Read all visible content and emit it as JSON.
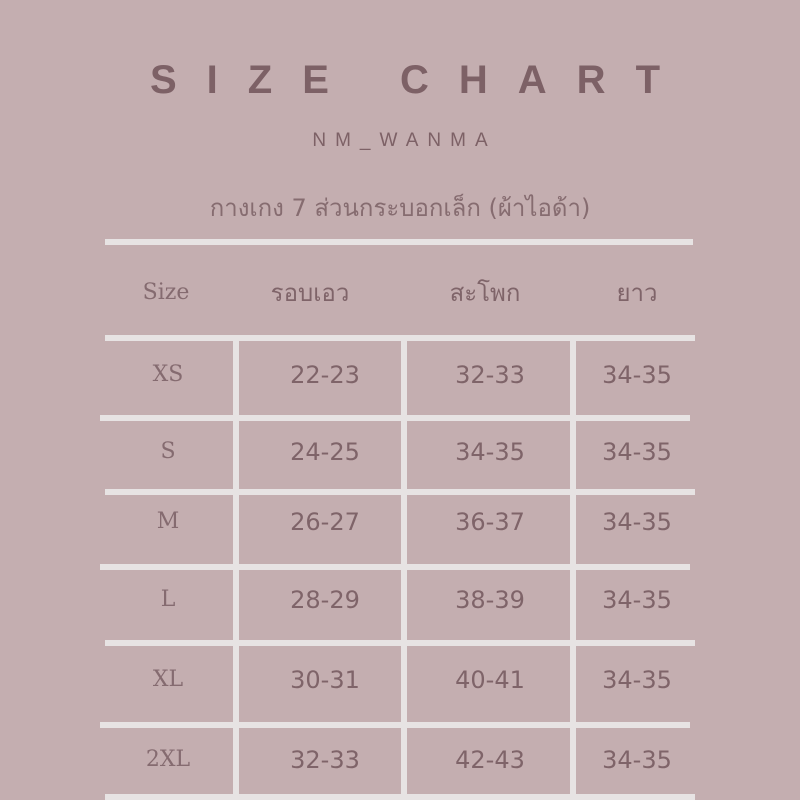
{
  "title": "SIZE CHART",
  "brand": "NM_WANMA",
  "subtitle": "กางเกง 7 ส่วนกระบอกเล็ก (ผ้าไอด้า)",
  "colors": {
    "background": "#c4aeb0",
    "text": "#7a5f64",
    "lines": "#e7e3e3"
  },
  "table": {
    "headers": [
      "Size",
      "รอบเอว",
      "สะโพก",
      "ยาว"
    ],
    "rows": [
      [
        "XS",
        "22-23",
        "32-33",
        "34-35"
      ],
      [
        "S",
        "24-25",
        "34-35",
        "34-35"
      ],
      [
        "M",
        "26-27",
        "36-37",
        "34-35"
      ],
      [
        "L",
        "28-29",
        "38-39",
        "34-35"
      ],
      [
        "XL",
        "30-31",
        "40-41",
        "34-35"
      ],
      [
        "2XL",
        "32-33",
        "42-43",
        "34-35"
      ]
    ]
  }
}
